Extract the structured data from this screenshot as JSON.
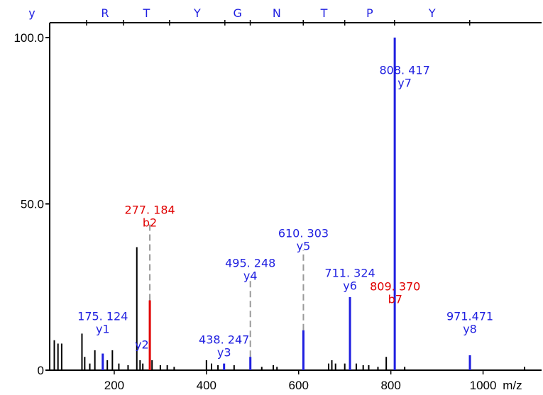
{
  "chart_data": {
    "type": "bar",
    "xlabel": "m/z",
    "ylabel": "",
    "xlim": [
      60,
      1130
    ],
    "ylim": [
      0,
      100
    ],
    "x_ticks": [
      {
        "value": 200,
        "label": "200"
      },
      {
        "value": 400,
        "label": "400"
      },
      {
        "value": 600,
        "label": "600"
      },
      {
        "value": 800,
        "label": "800"
      },
      {
        "value": 1000,
        "label": "1000"
      }
    ],
    "y_ticks": [
      {
        "value": 0,
        "label": "0"
      },
      {
        "value": 50,
        "label": "50.0"
      },
      {
        "value": 100,
        "label": "100.0"
      }
    ],
    "colors": {
      "y_ion": "#1f1fe0",
      "b_ion": "#e00000",
      "other": "#000000",
      "guide": "#9a9a9a"
    },
    "sequence": {
      "ion_series": "y",
      "residues": [
        "R",
        "T",
        "Y",
        "G",
        "N",
        "T",
        "P",
        "Y"
      ]
    },
    "peaks": [
      {
        "mz": 70,
        "intensity": 9
      },
      {
        "mz": 78,
        "intensity": 8
      },
      {
        "mz": 86,
        "intensity": 8
      },
      {
        "mz": 130,
        "intensity": 11
      },
      {
        "mz": 136,
        "intensity": 4
      },
      {
        "mz": 147,
        "intensity": 2
      },
      {
        "mz": 158,
        "intensity": 6
      },
      {
        "mz": 175.124,
        "intensity": 5,
        "ion": "y1"
      },
      {
        "mz": 185,
        "intensity": 3
      },
      {
        "mz": 196,
        "intensity": 6
      },
      {
        "mz": 210,
        "intensity": 2
      },
      {
        "mz": 230,
        "intensity": 1.5
      },
      {
        "mz": 249,
        "intensity": 37
      },
      {
        "mz": 256,
        "intensity": 3
      },
      {
        "mz": 262,
        "intensity": 2
      },
      {
        "mz": 277.184,
        "intensity": 21,
        "ion": "b2"
      },
      {
        "mz": 282,
        "intensity": 3
      },
      {
        "mz": 300,
        "intensity": 1.5
      },
      {
        "mz": 315,
        "intensity": 1.5
      },
      {
        "mz": 330,
        "intensity": 1
      },
      {
        "mz": 400,
        "intensity": 3
      },
      {
        "mz": 411,
        "intensity": 2
      },
      {
        "mz": 425,
        "intensity": 1.5
      },
      {
        "mz": 438.247,
        "intensity": 2,
        "ion": "y3"
      },
      {
        "mz": 460,
        "intensity": 1.5
      },
      {
        "mz": 495.248,
        "intensity": 4,
        "ion": "y4"
      },
      {
        "mz": 520,
        "intensity": 1
      },
      {
        "mz": 545,
        "intensity": 1.5
      },
      {
        "mz": 553,
        "intensity": 1
      },
      {
        "mz": 610.303,
        "intensity": 12,
        "ion": "y5"
      },
      {
        "mz": 665,
        "intensity": 2
      },
      {
        "mz": 672,
        "intensity": 3
      },
      {
        "mz": 680,
        "intensity": 2
      },
      {
        "mz": 700,
        "intensity": 2
      },
      {
        "mz": 711.324,
        "intensity": 22,
        "ion": "y6"
      },
      {
        "mz": 725,
        "intensity": 2
      },
      {
        "mz": 740,
        "intensity": 1.5
      },
      {
        "mz": 752,
        "intensity": 1.5
      },
      {
        "mz": 772,
        "intensity": 1
      },
      {
        "mz": 790,
        "intensity": 4
      },
      {
        "mz": 808.417,
        "intensity": 100,
        "ion": "y7"
      },
      {
        "mz": 830,
        "intensity": 1
      },
      {
        "mz": 971.471,
        "intensity": 4.5,
        "ion": "y8"
      },
      {
        "mz": 1090,
        "intensity": 1
      }
    ],
    "annotations": [
      {
        "mz_text": "175. 124",
        "ion": "y1",
        "color": "#1f1fe0",
        "x": 175.124,
        "y": 15
      },
      {
        "mz_text": "",
        "ion": "y2",
        "color": "#1f1fe0",
        "x": 260,
        "y": 6.5
      },
      {
        "mz_text": "277. 184",
        "ion": "b2",
        "color": "#e00000",
        "x": 277.184,
        "y": 47
      },
      {
        "mz_text": "438. 247",
        "ion": "y3",
        "color": "#1f1fe0",
        "x": 438.247,
        "y": 8
      },
      {
        "mz_text": "495. 248",
        "ion": "y4",
        "color": "#1f1fe0",
        "x": 495.248,
        "y": 31
      },
      {
        "mz_text": "610. 303",
        "ion": "y5",
        "color": "#1f1fe0",
        "x": 610.303,
        "y": 40
      },
      {
        "mz_text": "711. 324",
        "ion": "y6",
        "color": "#1f1fe0",
        "x": 711.324,
        "y": 28
      },
      {
        "mz_text": "808. 417",
        "ion": "y7",
        "color": "#1f1fe0",
        "x": 830,
        "y": 89
      },
      {
        "mz_text": "809. 370",
        "ion": "b7",
        "color": "#e00000",
        "x": 809.37,
        "y": 24
      },
      {
        "mz_text": "971.471",
        "ion": "y8",
        "color": "#1f1fe0",
        "x": 971.471,
        "y": 15
      }
    ],
    "guide_lines": [
      {
        "mz": 277.184,
        "from": 21,
        "to": 44
      },
      {
        "mz": 495.248,
        "from": 4,
        "to": 28
      },
      {
        "mz": 610.303,
        "from": 12,
        "to": 36
      }
    ],
    "residue_markers": [
      140,
      220,
      320,
      440,
      495,
      610,
      700,
      808,
      971
    ]
  }
}
